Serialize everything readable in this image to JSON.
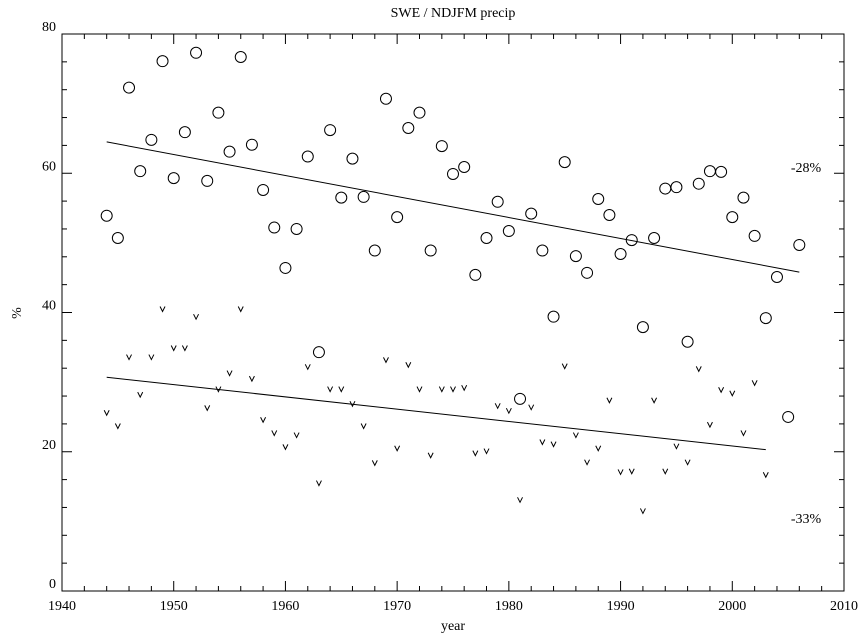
{
  "chart_data": {
    "type": "scatter",
    "title": "SWE / NDJFM precip",
    "x_label": "year",
    "y_label": "%",
    "xlim": [
      1940,
      2010
    ],
    "xticks": [
      1940,
      1950,
      1960,
      1970,
      1980,
      1990,
      2000,
      2010
    ],
    "ylim": [
      0,
      80
    ],
    "yticks": [
      0,
      20,
      40,
      60,
      80
    ],
    "grid": false,
    "series": [
      {
        "marker": "o",
        "color": "#000000",
        "annotation": "-28%",
        "x": [
          1944,
          1945,
          1946,
          1947,
          1948,
          1949,
          1950,
          1951,
          1952,
          1953,
          1954,
          1955,
          1956,
          1957,
          1958,
          1959,
          1960,
          1961,
          1962,
          1963,
          1964,
          1965,
          1966,
          1967,
          1968,
          1969,
          1970,
          1971,
          1972,
          1973,
          1974,
          1975,
          1976,
          1977,
          1978,
          1979,
          1980,
          1981,
          1982,
          1983,
          1984,
          1985,
          1986,
          1987,
          1988,
          1989,
          1990,
          1991,
          1992,
          1993,
          1994,
          1995,
          1996,
          1997,
          1998,
          1999,
          2000,
          2001,
          2002,
          2003,
          2004,
          2005,
          2006
        ],
        "values": [
          53.9,
          50.7,
          72.3,
          60.3,
          64.8,
          76.1,
          59.3,
          65.9,
          77.3,
          58.9,
          68.7,
          63.1,
          76.7,
          64.1,
          57.6,
          52.2,
          46.4,
          52.0,
          62.4,
          34.3,
          66.2,
          56.5,
          62.1,
          56.6,
          48.9,
          70.7,
          53.7,
          66.5,
          68.7,
          48.9,
          63.9,
          59.9,
          60.9,
          45.4,
          50.7,
          55.9,
          51.7,
          27.6,
          54.2,
          48.9,
          39.4,
          61.6,
          48.1,
          45.7,
          56.3,
          54.0,
          48.4,
          50.4,
          37.9,
          50.7,
          57.8,
          58.0,
          35.8,
          58.5,
          60.3,
          60.2,
          53.7,
          56.5,
          51.0,
          39.2,
          45.1,
          25.0,
          49.7
        ],
        "trend": {
          "x": [
            1944,
            2006
          ],
          "y": [
            64.5,
            45.8
          ]
        }
      },
      {
        "marker": "v",
        "color": "#000000",
        "annotation": "-33%",
        "x": [
          1944,
          1945,
          1946,
          1947,
          1948,
          1949,
          1950,
          1951,
          1952,
          1953,
          1954,
          1955,
          1956,
          1957,
          1958,
          1959,
          1960,
          1961,
          1962,
          1963,
          1964,
          1965,
          1966,
          1967,
          1968,
          1969,
          1970,
          1971,
          1972,
          1973,
          1974,
          1975,
          1976,
          1977,
          1978,
          1979,
          1980,
          1981,
          1982,
          1983,
          1984,
          1985,
          1986,
          1987,
          1988,
          1989,
          1990,
          1991,
          1992,
          1993,
          1994,
          1995,
          1996,
          1997,
          1998,
          1999,
          2000,
          2001,
          2002,
          2003
        ],
        "values": [
          25.6,
          23.7,
          33.6,
          28.2,
          33.6,
          40.5,
          34.9,
          34.9,
          39.4,
          26.3,
          29.0,
          31.3,
          40.5,
          30.5,
          24.6,
          22.7,
          20.7,
          22.4,
          32.2,
          15.5,
          29.0,
          29.0,
          26.9,
          23.7,
          18.4,
          33.2,
          20.5,
          32.5,
          29.0,
          19.5,
          29.0,
          29.0,
          29.2,
          19.8,
          20.1,
          26.6,
          25.9,
          13.1,
          26.4,
          21.4,
          21.1,
          32.3,
          22.4,
          18.5,
          20.5,
          27.4,
          17.1,
          17.2,
          11.5,
          27.4,
          17.2,
          20.8,
          18.5,
          31.9,
          23.9,
          28.9,
          28.4,
          22.7,
          29.9,
          16.7
        ],
        "trend": {
          "x": [
            1944,
            2003
          ],
          "y": [
            30.7,
            20.3
          ]
        }
      }
    ]
  }
}
